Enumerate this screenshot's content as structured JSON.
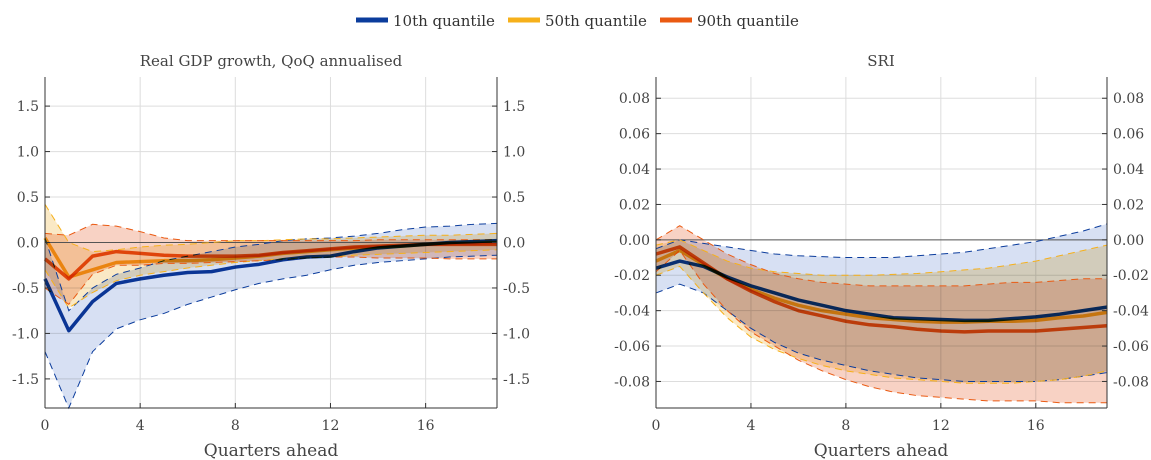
{
  "legend": {
    "items": [
      {
        "label": "10th quantile",
        "color": "#0b3c9c"
      },
      {
        "label": "50th quantile",
        "color": "#f6b01a"
      },
      {
        "label": "90th quantile",
        "color": "#ea5a12"
      }
    ]
  },
  "colors": {
    "q10_line": "#0b3c9c",
    "q10_band": "#c9d6ef",
    "q50_line": "#f6b01a",
    "q50_band": "#f8e2b2",
    "q90_line": "#ea5a12",
    "q90_band": "#f6c3b0",
    "grid": "#dddddd",
    "axis": "#333333"
  },
  "chart_data": [
    {
      "type": "line",
      "title": "Real GDP growth, QoQ annualised",
      "xlabel": "Quarters ahead",
      "ylabel": "",
      "xlim": [
        0,
        19
      ],
      "ylim": [
        -1.82,
        1.82
      ],
      "xticks": [
        "0",
        "4",
        "8",
        "12",
        "16"
      ],
      "xtick_values": [
        0,
        4,
        8,
        12,
        16
      ],
      "yticks": [
        "1.5",
        "1.0",
        "0.5",
        "0.0",
        "-0.5",
        "-1.0",
        "-1.5"
      ],
      "ytick_values": [
        1.5,
        1.0,
        0.5,
        0.0,
        -0.5,
        -1.0,
        -1.5
      ],
      "grid": true,
      "zero_line": true,
      "x": [
        0,
        1,
        2,
        3,
        4,
        5,
        6,
        7,
        8,
        9,
        10,
        11,
        12,
        13,
        14,
        15,
        16,
        17,
        18,
        19
      ],
      "series": [
        {
          "name": "10th quantile",
          "color_key": "q10",
          "values": [
            -0.4,
            -0.97,
            -0.65,
            -0.45,
            -0.4,
            -0.36,
            -0.33,
            -0.32,
            -0.27,
            -0.24,
            -0.19,
            -0.16,
            -0.15,
            -0.1,
            -0.06,
            -0.04,
            -0.02,
            0,
            0.01,
            0.02
          ],
          "lower": [
            -1.2,
            -1.82,
            -1.2,
            -0.95,
            -0.85,
            -0.78,
            -0.68,
            -0.6,
            -0.52,
            -0.45,
            -0.4,
            -0.36,
            -0.3,
            -0.25,
            -0.22,
            -0.2,
            -0.18,
            -0.16,
            -0.15,
            -0.14
          ],
          "upper": [
            0.05,
            -0.75,
            -0.5,
            -0.35,
            -0.28,
            -0.2,
            -0.15,
            -0.1,
            -0.05,
            -0.02,
            0.02,
            0.04,
            0.05,
            0.07,
            0.1,
            0.14,
            0.17,
            0.18,
            0.2,
            0.21
          ]
        },
        {
          "name": "50th quantile",
          "color_key": "q50",
          "values": [
            0.05,
            -0.38,
            -0.3,
            -0.22,
            -0.21,
            -0.2,
            -0.2,
            -0.19,
            -0.17,
            -0.15,
            -0.12,
            -0.1,
            -0.08,
            -0.06,
            -0.05,
            -0.04,
            -0.02,
            -0.01,
            -0.01,
            0.0
          ],
          "lower": [
            -0.3,
            -0.72,
            -0.55,
            -0.42,
            -0.36,
            -0.32,
            -0.28,
            -0.25,
            -0.22,
            -0.2,
            -0.18,
            -0.17,
            -0.16,
            -0.14,
            -0.13,
            -0.12,
            -0.11,
            -0.1,
            -0.09,
            -0.08
          ],
          "upper": [
            0.42,
            0.0,
            -0.1,
            -0.08,
            -0.05,
            -0.03,
            -0.02,
            0.0,
            0.02,
            0.02,
            0.03,
            0.04,
            0.04,
            0.05,
            0.06,
            0.07,
            0.08,
            0.08,
            0.09,
            0.1
          ]
        },
        {
          "name": "90th quantile",
          "color_key": "q90",
          "values": [
            -0.18,
            -0.4,
            -0.15,
            -0.1,
            -0.12,
            -0.14,
            -0.15,
            -0.15,
            -0.15,
            -0.14,
            -0.11,
            -0.09,
            -0.07,
            -0.05,
            -0.04,
            -0.03,
            -0.02,
            -0.02,
            -0.02,
            -0.02
          ],
          "lower": [
            -0.5,
            -0.68,
            -0.35,
            -0.25,
            -0.25,
            -0.23,
            -0.23,
            -0.22,
            -0.21,
            -0.2,
            -0.19,
            -0.17,
            -0.16,
            -0.16,
            -0.17,
            -0.17,
            -0.17,
            -0.18,
            -0.18,
            -0.18
          ],
          "upper": [
            0.1,
            0.08,
            0.2,
            0.18,
            0.12,
            0.05,
            0.02,
            0.02,
            0.02,
            0.02,
            0.02,
            0.02,
            0.02,
            0.02,
            0.03,
            0.03,
            0.03,
            0.03,
            0.03,
            0.03
          ]
        }
      ]
    },
    {
      "type": "line",
      "title": "SRI",
      "xlabel": "Quarters ahead",
      "ylabel": "",
      "xlim": [
        0,
        19
      ],
      "ylim": [
        -0.095,
        0.092
      ],
      "xticks": [
        "0",
        "4",
        "8",
        "12",
        "16"
      ],
      "xtick_values": [
        0,
        4,
        8,
        12,
        16
      ],
      "yticks": [
        "0.08",
        "0.06",
        "0.04",
        "0.02",
        "0.00",
        "-0.02",
        "-0.04",
        "-0.06",
        "-0.08"
      ],
      "ytick_values": [
        0.08,
        0.06,
        0.04,
        0.02,
        0.0,
        -0.02,
        -0.04,
        -0.06,
        -0.08
      ],
      "grid": true,
      "zero_line": true,
      "x": [
        0,
        1,
        2,
        3,
        4,
        5,
        6,
        7,
        8,
        9,
        10,
        11,
        12,
        13,
        14,
        15,
        16,
        17,
        18,
        19
      ],
      "series": [
        {
          "name": "10th quantile",
          "color_key": "q10",
          "values": [
            -0.016,
            -0.012,
            -0.015,
            -0.021,
            -0.026,
            -0.03,
            -0.034,
            -0.037,
            -0.04,
            -0.042,
            -0.044,
            -0.0445,
            -0.045,
            -0.0455,
            -0.0455,
            -0.0445,
            -0.0435,
            -0.042,
            -0.04,
            -0.038
          ],
          "lower": [
            -0.03,
            -0.025,
            -0.03,
            -0.04,
            -0.05,
            -0.058,
            -0.064,
            -0.068,
            -0.071,
            -0.074,
            -0.076,
            -0.078,
            -0.079,
            -0.08,
            -0.08,
            -0.08,
            -0.08,
            -0.079,
            -0.077,
            -0.075
          ],
          "upper": [
            -0.005,
            0.0,
            -0.002,
            -0.004,
            -0.006,
            -0.008,
            -0.009,
            -0.0095,
            -0.01,
            -0.01,
            -0.01,
            -0.009,
            -0.008,
            -0.007,
            -0.005,
            -0.003,
            -0.001,
            0.002,
            0.005,
            0.009
          ]
        },
        {
          "name": "50th quantile",
          "color_key": "q50",
          "values": [
            -0.012,
            -0.006,
            -0.014,
            -0.022,
            -0.028,
            -0.033,
            -0.037,
            -0.04,
            -0.042,
            -0.044,
            -0.045,
            -0.046,
            -0.0465,
            -0.0465,
            -0.046,
            -0.046,
            -0.0455,
            -0.044,
            -0.043,
            -0.041
          ],
          "lower": [
            -0.02,
            -0.015,
            -0.03,
            -0.044,
            -0.055,
            -0.062,
            -0.067,
            -0.071,
            -0.074,
            -0.076,
            -0.078,
            -0.079,
            -0.08,
            -0.081,
            -0.081,
            -0.081,
            -0.08,
            -0.079,
            -0.077,
            -0.074
          ],
          "upper": [
            -0.003,
            0.0,
            -0.006,
            -0.012,
            -0.016,
            -0.018,
            -0.019,
            -0.02,
            -0.02,
            -0.02,
            -0.0195,
            -0.019,
            -0.018,
            -0.017,
            -0.016,
            -0.014,
            -0.012,
            -0.009,
            -0.006,
            -0.003
          ]
        },
        {
          "name": "90th quantile",
          "color_key": "q90",
          "values": [
            -0.008,
            -0.004,
            -0.013,
            -0.022,
            -0.029,
            -0.035,
            -0.04,
            -0.043,
            -0.046,
            -0.048,
            -0.049,
            -0.0505,
            -0.0515,
            -0.052,
            -0.0515,
            -0.0515,
            -0.0515,
            -0.0505,
            -0.0495,
            -0.0485
          ],
          "lower": [
            -0.018,
            -0.006,
            -0.025,
            -0.04,
            -0.052,
            -0.06,
            -0.068,
            -0.074,
            -0.079,
            -0.083,
            -0.086,
            -0.088,
            -0.089,
            -0.09,
            -0.091,
            -0.091,
            -0.091,
            -0.092,
            -0.092,
            -0.092
          ],
          "upper": [
            0.0,
            0.008,
            0.0,
            -0.008,
            -0.014,
            -0.019,
            -0.022,
            -0.024,
            -0.025,
            -0.026,
            -0.026,
            -0.026,
            -0.026,
            -0.026,
            -0.025,
            -0.024,
            -0.024,
            -0.023,
            -0.022,
            -0.022
          ]
        }
      ]
    }
  ]
}
